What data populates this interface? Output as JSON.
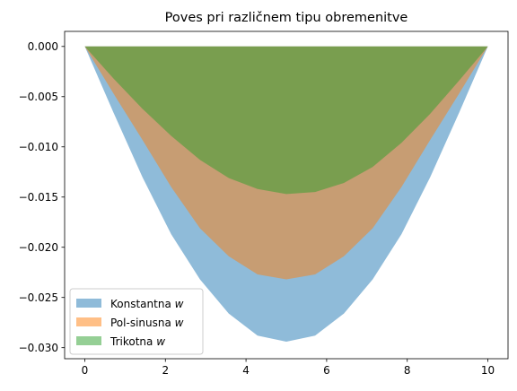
{
  "chart_data": {
    "type": "area",
    "title": "Poves pri različnem tipu obremenitve",
    "xlabel": "",
    "ylabel": "",
    "xlim": [
      -0.5,
      10.5
    ],
    "ylim": [
      -0.0311,
      0.0015
    ],
    "x_ticks": [
      "0",
      "2",
      "4",
      "6",
      "8",
      "10"
    ],
    "y_ticks": [
      "0.000",
      "−0.005",
      "−0.010",
      "−0.015",
      "−0.020",
      "−0.025",
      "−0.030"
    ],
    "grid": false,
    "legend_position": "lower-left",
    "x": [
      0,
      0.714,
      1.429,
      2.143,
      2.857,
      3.571,
      4.286,
      5.0,
      5.714,
      6.429,
      7.143,
      7.857,
      8.571,
      9.286,
      10
    ],
    "series": [
      {
        "name": "Konstantna w",
        "name_prefix": "Konstantna ",
        "name_var": "w",
        "color": "#1f77b4",
        "values": [
          0,
          -0.0066,
          -0.013,
          -0.0187,
          -0.0232,
          -0.0266,
          -0.0288,
          -0.0294,
          -0.0288,
          -0.0266,
          -0.0232,
          -0.0187,
          -0.013,
          -0.0066,
          0
        ]
      },
      {
        "name": "Pol-sinusna w",
        "name_prefix": "Pol-sinusna ",
        "name_var": "w",
        "color": "#ff7f0e",
        "values": [
          0,
          -0.0047,
          -0.0093,
          -0.014,
          -0.0181,
          -0.0209,
          -0.0227,
          -0.0232,
          -0.0227,
          -0.0209,
          -0.0181,
          -0.014,
          -0.0093,
          -0.0047,
          0
        ]
      },
      {
        "name": "Trikotna w",
        "name_prefix": "Trikotna ",
        "name_var": "w",
        "color": "#2ca02c",
        "values": [
          0,
          -0.0032,
          -0.0062,
          -0.0089,
          -0.0113,
          -0.0131,
          -0.0142,
          -0.0147,
          -0.0145,
          -0.0136,
          -0.012,
          -0.0096,
          -0.0067,
          -0.0034,
          0
        ]
      }
    ]
  }
}
